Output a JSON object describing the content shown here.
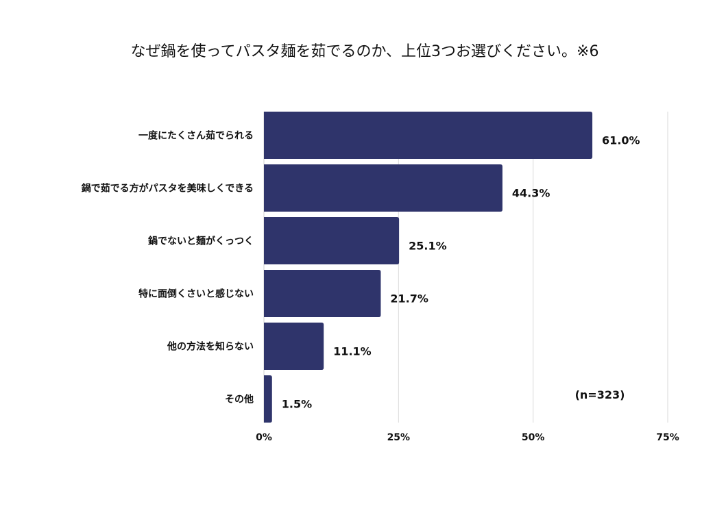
{
  "chart_data": {
    "type": "bar",
    "orientation": "horizontal",
    "title": "なぜ鍋を使ってパスタ麺を茹でるのか、上位3つお選びください。※6",
    "categories": [
      "一度にたくさん茹でられる",
      "鍋で茹でる方がパスタを美味しくできる",
      "鍋でないと麺がくっつく",
      "特に面倒くさいと感じない",
      "他の方法を知らない",
      "その他"
    ],
    "values": [
      61.0,
      44.3,
      25.1,
      21.7,
      11.1,
      1.5
    ],
    "value_labels": [
      "61.0%",
      "44.3%",
      "25.1%",
      "21.7%",
      "11.1%",
      "1.5%"
    ],
    "xlim": [
      0,
      75
    ],
    "xticks": [
      0,
      25,
      50,
      75
    ],
    "xtick_labels": [
      "0%",
      "25%",
      "50%",
      "75%"
    ],
    "grid": true,
    "bar_color": "#2f346b",
    "annotation": "(n=323)"
  }
}
